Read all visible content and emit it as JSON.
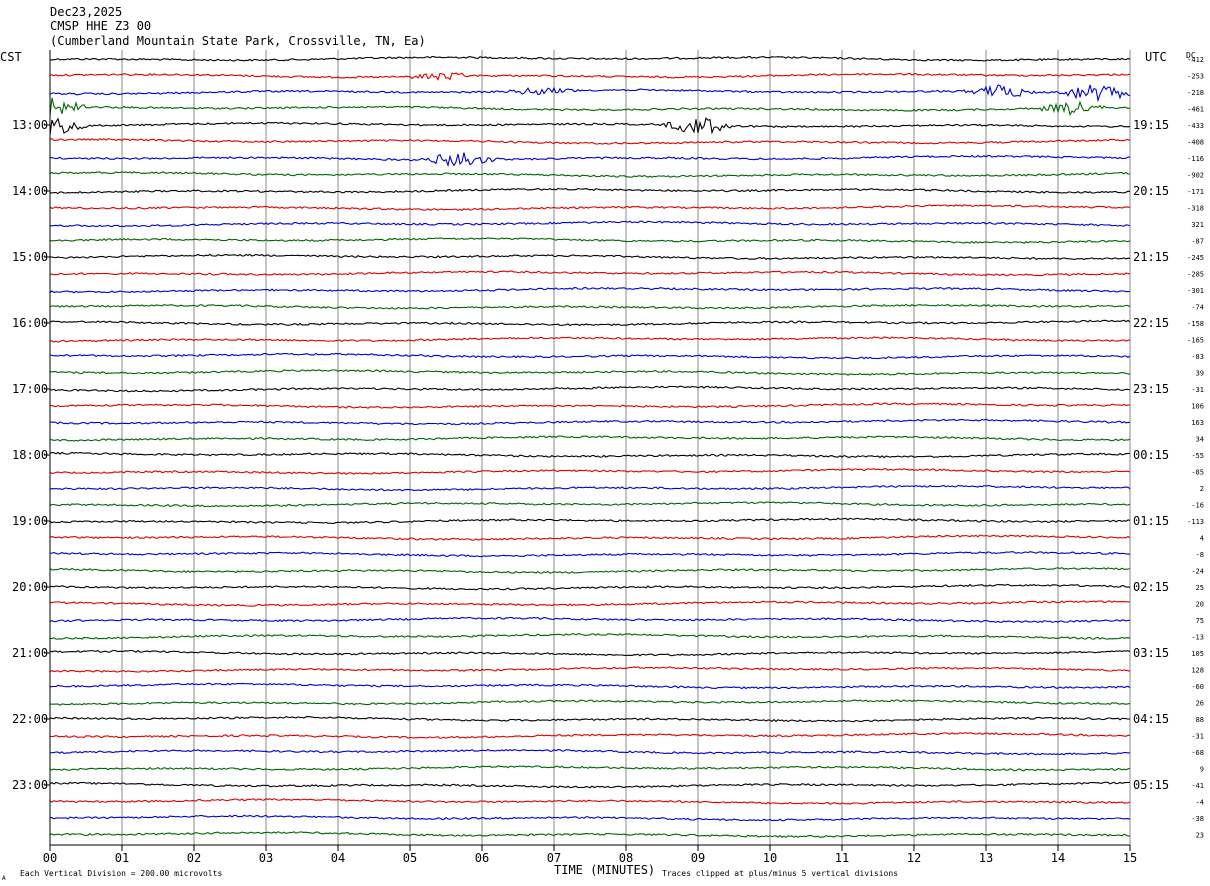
{
  "header": {
    "date": "Dec23,2025",
    "station": "CMSP HHE Z3 00",
    "location": "(Cumberland Mountain State Park, Crossville, TN, Ea)"
  },
  "labels": {
    "left_tz": "CST",
    "right_tz": "UTC",
    "dc": "DC",
    "xlabel": "TIME (MINUTES)",
    "scale_note": "Each Vertical Division =  200.00 microvolts",
    "clip_note": "Traces clipped at plus/minus 5 vertical divisions",
    "corner_mark": "A"
  },
  "colors": {
    "trace_cycle": [
      "#000000",
      "#dd0000",
      "#0000cc",
      "#006600"
    ],
    "grid": "#888888",
    "axes": "#000000"
  },
  "chart_data": {
    "type": "line",
    "title": "CMSP HHE Z3 00",
    "xlabel": "TIME (MINUTES)",
    "xlim": [
      0,
      15
    ],
    "x_ticks": [
      "00",
      "01",
      "02",
      "03",
      "04",
      "05",
      "06",
      "07",
      "08",
      "09",
      "10",
      "11",
      "12",
      "13",
      "14",
      "15"
    ],
    "trace_count": 48,
    "minutes_per_trace": 15,
    "left_hour_labels": [
      "13:00",
      "14:00",
      "15:00",
      "16:00",
      "17:00",
      "18:00",
      "19:00",
      "20:00",
      "21:00",
      "22:00",
      "23:00"
    ],
    "right_hour_labels": [
      "19:15",
      "20:15",
      "21:15",
      "22:15",
      "23:15",
      "00:15",
      "01:15",
      "02:15",
      "03:15",
      "04:15",
      "05:15"
    ],
    "hour_label_first_trace": 4,
    "dc_offsets": [
      "-412",
      "-253",
      "-218",
      "-461",
      "-433",
      "-408",
      "-116",
      "-902",
      "-171",
      "-318",
      "321",
      "-87",
      "-245",
      "-285",
      "-301",
      "-74",
      "-158",
      "-165",
      "-83",
      "39",
      "-31",
      "106",
      "163",
      "34",
      "-55",
      "-85",
      "2",
      "-16",
      "-113",
      "4",
      "-8",
      "-24",
      "25",
      "20",
      "75",
      "-13",
      "105",
      "128",
      "-60",
      "26",
      "88",
      "-31",
      "-68",
      "9",
      "-41",
      "-4",
      "-38",
      "23"
    ],
    "events": [
      {
        "trace": 1,
        "minute": 5.4,
        "amplitude": "small"
      },
      {
        "trace": 2,
        "minute": 6.8,
        "amplitude": "small"
      },
      {
        "trace": 2,
        "minute": 13.2,
        "amplitude": "medium"
      },
      {
        "trace": 2,
        "minute": 14.5,
        "amplitude": "large"
      },
      {
        "trace": 3,
        "minute": 0.0,
        "amplitude": "large"
      },
      {
        "trace": 3,
        "minute": 14.2,
        "amplitude": "medium"
      },
      {
        "trace": 4,
        "minute": 0.0,
        "amplitude": "large"
      },
      {
        "trace": 4,
        "minute": 9.0,
        "amplitude": "large"
      },
      {
        "trace": 6,
        "minute": 5.7,
        "amplitude": "large"
      }
    ]
  }
}
